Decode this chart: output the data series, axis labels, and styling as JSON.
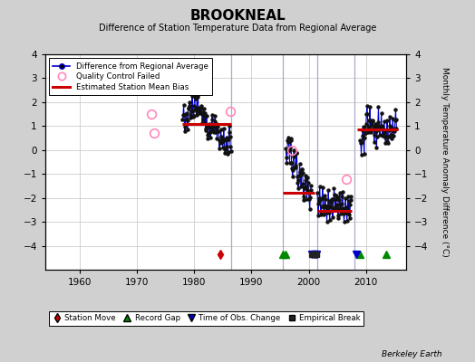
{
  "title": "BROOKNEAL",
  "subtitle": "Difference of Station Temperature Data from Regional Average",
  "ylabel": "Monthly Temperature Anomaly Difference (°C)",
  "ylim": [
    -5,
    4
  ],
  "yticks": [
    -4,
    -3,
    -2,
    -1,
    0,
    1,
    2,
    3,
    4
  ],
  "xlim": [
    1954,
    2017
  ],
  "xticks": [
    1960,
    1970,
    1980,
    1990,
    2000,
    2010
  ],
  "watermark": "Berkeley Earth",
  "segment_periods": [
    {
      "start": 1978.0,
      "end": 1986.5,
      "bias": 1.1
    },
    {
      "start": 1995.5,
      "end": 2001.0,
      "bias": -1.8
    },
    {
      "start": 2001.5,
      "end": 2007.5,
      "bias": -2.55
    },
    {
      "start": 2008.5,
      "end": 2015.5,
      "bias": 0.85
    }
  ],
  "vertical_lines": [
    1986.5,
    1995.5,
    2001.5,
    2008.0
  ],
  "data_segments": [
    {
      "years": [
        1978.0,
        1978.08,
        1978.17,
        1978.25,
        1978.33,
        1978.42,
        1978.5,
        1978.58,
        1978.67,
        1978.75,
        1978.83,
        1978.92,
        1979.0,
        1979.08,
        1979.17,
        1979.25,
        1979.33,
        1979.42,
        1979.5,
        1979.58,
        1979.67,
        1979.75,
        1979.83,
        1979.92,
        1980.0,
        1980.08,
        1980.17,
        1980.25,
        1980.33,
        1980.42,
        1980.5,
        1980.58,
        1980.67,
        1980.75,
        1980.83,
        1980.92,
        1981.0,
        1981.08,
        1981.17,
        1981.25,
        1981.33,
        1981.42,
        1981.5,
        1981.58,
        1981.67,
        1981.75,
        1981.83,
        1981.92,
        1982.0,
        1982.08,
        1982.17,
        1982.25,
        1982.33,
        1982.42,
        1982.5,
        1982.58,
        1982.67,
        1982.75,
        1982.83,
        1982.92,
        1983.0,
        1983.08,
        1983.17,
        1983.25,
        1983.33,
        1983.42,
        1983.5,
        1983.58,
        1983.67,
        1983.75,
        1983.83,
        1983.92,
        1984.0,
        1984.08,
        1984.17,
        1984.25,
        1984.33,
        1984.42,
        1984.5,
        1984.58,
        1984.67,
        1984.75,
        1984.83,
        1984.92,
        1985.0,
        1985.08,
        1985.17,
        1985.25,
        1985.33,
        1985.42,
        1985.5,
        1985.58,
        1985.67,
        1985.75,
        1985.83,
        1985.92,
        1986.0,
        1986.08,
        1986.17,
        1986.25,
        1986.33,
        1986.42
      ],
      "values": [
        1.2,
        1.5,
        1.8,
        1.3,
        1.0,
        0.8,
        1.1,
        1.4,
        1.6,
        1.2,
        0.9,
        1.3,
        1.7,
        2.0,
        2.2,
        1.9,
        1.6,
        1.3,
        1.5,
        1.8,
        2.1,
        1.7,
        1.4,
        1.6,
        1.9,
        2.2,
        2.5,
        2.1,
        1.8,
        1.5,
        1.7,
        2.0,
        2.3,
        1.9,
        1.6,
        1.8,
        1.5,
        1.8,
        2.0,
        1.7,
        1.4,
        1.1,
        1.3,
        1.6,
        1.9,
        1.5,
        1.2,
        1.4,
        0.8,
        1.1,
        1.4,
        1.0,
        0.7,
        0.4,
        0.6,
        0.9,
        1.2,
        0.8,
        0.5,
        0.7,
        1.0,
        1.3,
        1.6,
        1.2,
        0.9,
        0.6,
        0.8,
        1.1,
        1.4,
        1.0,
        0.7,
        0.9,
        0.5,
        0.8,
        1.1,
        0.7,
        0.4,
        0.1,
        0.3,
        0.6,
        0.9,
        0.5,
        0.2,
        0.4,
        0.2,
        0.5,
        0.8,
        0.4,
        0.1,
        -0.2,
        0.0,
        0.3,
        0.6,
        0.2,
        -0.1,
        0.1,
        0.4,
        0.7,
        1.0,
        0.6,
        0.3,
        0.0
      ]
    },
    {
      "years": [
        1996.0,
        1996.08,
        1996.17,
        1996.25,
        1996.33,
        1996.42,
        1996.5,
        1996.58,
        1996.67,
        1996.75,
        1996.83,
        1996.92,
        1997.0,
        1997.08,
        1997.17,
        1997.25,
        1997.33,
        1997.42,
        1997.5,
        1997.58,
        1997.67,
        1997.75,
        1997.83,
        1997.92,
        1998.0,
        1998.08,
        1998.17,
        1998.25,
        1998.33,
        1998.42,
        1998.5,
        1998.58,
        1998.67,
        1998.75,
        1998.83,
        1998.92,
        1999.0,
        1999.08,
        1999.17,
        1999.25,
        1999.33,
        1999.42,
        1999.5,
        1999.58,
        1999.67,
        1999.75,
        1999.83,
        1999.92,
        2000.0,
        2000.08,
        2000.17,
        2000.25,
        2000.33,
        2000.42
      ],
      "values": [
        0.1,
        -0.2,
        -0.5,
        -0.1,
        0.2,
        0.5,
        0.3,
        0.0,
        -0.3,
        0.1,
        0.4,
        0.2,
        -0.5,
        -0.8,
        -1.1,
        -0.7,
        -0.4,
        -0.1,
        -0.3,
        -0.6,
        -0.9,
        -0.5,
        -0.2,
        -0.4,
        -1.0,
        -1.3,
        -1.6,
        -1.2,
        -0.9,
        -0.6,
        -0.8,
        -1.1,
        -1.4,
        -1.0,
        -0.7,
        -0.9,
        -1.5,
        -1.8,
        -2.1,
        -1.7,
        -1.4,
        -1.1,
        -1.3,
        -1.6,
        -1.9,
        -1.5,
        -1.2,
        -1.4,
        -1.8,
        -2.1,
        -2.4,
        -2.0,
        -1.7,
        -1.4
      ]
    },
    {
      "years": [
        2001.5,
        2001.58,
        2001.67,
        2001.75,
        2001.83,
        2001.92,
        2002.0,
        2002.08,
        2002.17,
        2002.25,
        2002.33,
        2002.42,
        2002.5,
        2002.58,
        2002.67,
        2002.75,
        2002.83,
        2002.92,
        2003.0,
        2003.08,
        2003.17,
        2003.25,
        2003.33,
        2003.42,
        2003.5,
        2003.58,
        2003.67,
        2003.75,
        2003.83,
        2003.92,
        2004.0,
        2004.08,
        2004.17,
        2004.25,
        2004.33,
        2004.42,
        2004.5,
        2004.58,
        2004.67,
        2004.75,
        2004.83,
        2004.92,
        2005.0,
        2005.08,
        2005.17,
        2005.25,
        2005.33,
        2005.42,
        2005.5,
        2005.58,
        2005.67,
        2005.75,
        2005.83,
        2005.92,
        2006.0,
        2006.08,
        2006.17,
        2006.25,
        2006.33,
        2006.42,
        2006.5,
        2006.58,
        2006.67,
        2006.75,
        2006.83,
        2006.92,
        2007.0,
        2007.08,
        2007.17,
        2007.25,
        2007.33,
        2007.42
      ],
      "values": [
        -2.0,
        -2.3,
        -2.6,
        -2.2,
        -1.9,
        -1.6,
        -2.2,
        -2.5,
        -2.8,
        -2.4,
        -2.1,
        -1.8,
        -2.0,
        -2.3,
        -2.6,
        -2.2,
        -1.9,
        -2.1,
        -2.4,
        -2.7,
        -3.0,
        -2.6,
        -2.3,
        -2.0,
        -2.2,
        -2.5,
        -2.8,
        -2.4,
        -2.1,
        -2.3,
        -2.1,
        -2.4,
        -2.7,
        -2.3,
        -2.0,
        -1.7,
        -1.9,
        -2.2,
        -2.5,
        -2.1,
        -1.8,
        -2.0,
        -2.3,
        -2.6,
        -2.9,
        -2.5,
        -2.2,
        -1.9,
        -2.1,
        -2.4,
        -2.7,
        -2.3,
        -2.0,
        -2.2,
        -2.5,
        -2.8,
        -3.1,
        -2.7,
        -2.4,
        -2.1,
        -2.3,
        -2.6,
        -2.9,
        -2.5,
        -2.2,
        -2.4,
        -2.2,
        -2.5,
        -2.8,
        -2.4,
        -2.1,
        -1.8
      ]
    },
    {
      "years": [
        2009.0,
        2009.08,
        2009.17,
        2009.25,
        2009.33,
        2009.42,
        2009.5,
        2009.58,
        2009.67,
        2009.75,
        2009.83,
        2009.92,
        2010.0,
        2010.08,
        2010.17,
        2010.25,
        2010.33,
        2010.42,
        2010.5,
        2010.58,
        2010.67,
        2010.75,
        2010.83,
        2010.92,
        2011.0,
        2011.08,
        2011.17,
        2011.25,
        2011.33,
        2011.42,
        2011.5,
        2011.58,
        2011.67,
        2011.75,
        2011.83,
        2011.92,
        2012.0,
        2012.08,
        2012.17,
        2012.25,
        2012.33,
        2012.42,
        2012.5,
        2012.58,
        2012.67,
        2012.75,
        2012.83,
        2012.92,
        2013.0,
        2013.08,
        2013.17,
        2013.25,
        2013.33,
        2013.42,
        2013.5,
        2013.58,
        2013.67,
        2013.75,
        2013.83,
        2013.92,
        2014.0,
        2014.08,
        2014.17,
        2014.25,
        2014.33,
        2014.42,
        2014.5,
        2014.58,
        2014.67,
        2014.75,
        2014.83,
        2014.92,
        2015.0,
        2015.08,
        2015.17,
        2015.25,
        2015.33
      ],
      "values": [
        0.5,
        0.2,
        -0.1,
        0.3,
        0.6,
        0.9,
        0.7,
        0.4,
        0.1,
        0.5,
        0.8,
        0.6,
        1.2,
        1.5,
        1.8,
        1.4,
        1.1,
        0.8,
        1.0,
        1.3,
        1.6,
        1.2,
        0.9,
        1.1,
        0.8,
        1.1,
        1.4,
        1.0,
        0.7,
        0.4,
        0.6,
        0.9,
        1.2,
        0.8,
        0.5,
        0.7,
        1.0,
        1.3,
        1.6,
        1.2,
        0.9,
        0.6,
        0.8,
        1.1,
        1.4,
        1.0,
        0.7,
        0.9,
        0.6,
        0.9,
        1.2,
        0.8,
        0.5,
        0.2,
        0.4,
        0.7,
        1.0,
        0.6,
        0.3,
        0.5,
        0.8,
        1.1,
        1.4,
        1.0,
        0.7,
        0.4,
        0.6,
        0.9,
        1.2,
        0.8,
        0.5,
        0.7,
        1.0,
        1.3,
        1.6,
        1.2,
        0.9
      ]
    }
  ],
  "qc_failed_points": [
    {
      "year": 1972.5,
      "value": 1.5
    },
    {
      "year": 1973.0,
      "value": 0.7
    },
    {
      "year": 1986.3,
      "value": 1.6
    },
    {
      "year": 1997.0,
      "value": 0.0
    },
    {
      "year": 2006.5,
      "value": -1.2
    }
  ],
  "station_moves": [
    1984.5
  ],
  "record_gaps": [
    1995.5,
    1996.0,
    2009.0,
    2013.5
  ],
  "time_obs_changes": [
    2000.5,
    2001.0,
    2001.3,
    2008.25
  ],
  "empirical_breaks": [
    2000.5,
    2001.0,
    2001.3
  ],
  "marker_y": -4.35,
  "line_color": "#0000cc",
  "marker_color": "#111111",
  "bias_color": "#cc0000",
  "qc_color": "#ff88cc",
  "station_move_color": "#cc0000",
  "record_gap_color": "#008800",
  "time_obs_color": "#0000cc",
  "empirical_break_color": "#222222"
}
